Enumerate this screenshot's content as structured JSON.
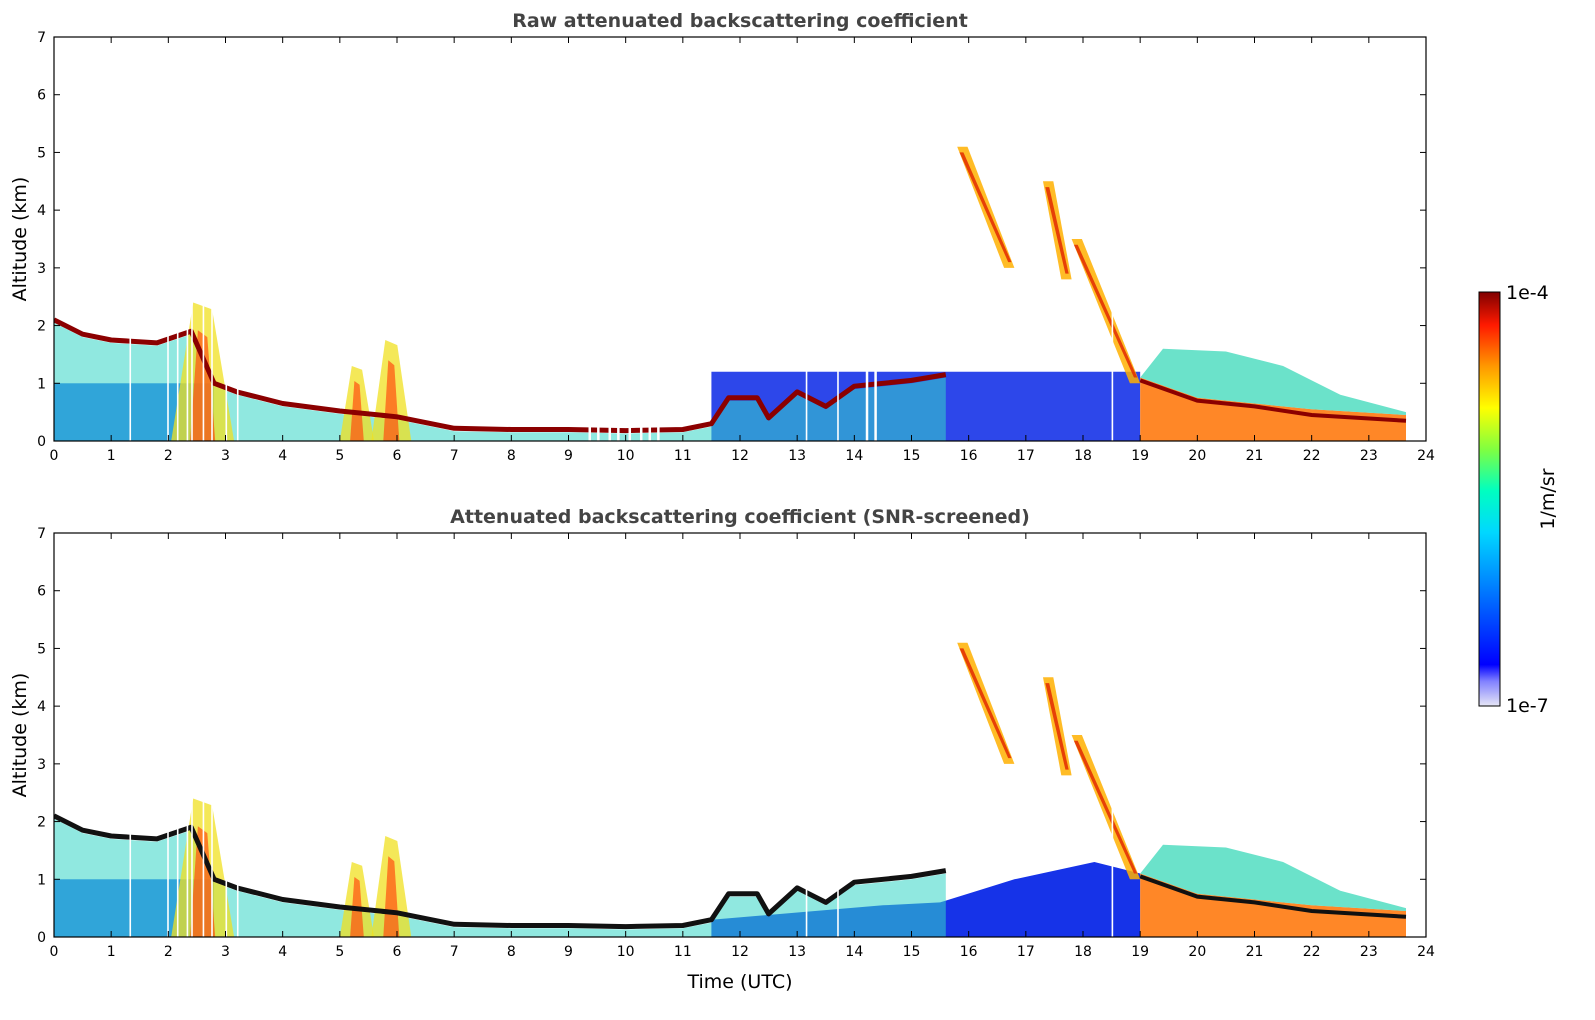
{
  "chart_data": [
    {
      "type": "heatmap",
      "title": "Raw attenuated backscattering coefficient",
      "xlabel": "",
      "ylabel": "Altitude (km)",
      "xlim": [
        0,
        24
      ],
      "ylim": [
        0,
        7
      ],
      "x_ticks": [
        "0",
        "1",
        "2",
        "3",
        "4",
        "5",
        "6",
        "7",
        "8",
        "9",
        "10",
        "11",
        "12",
        "13",
        "14",
        "15",
        "16",
        "17",
        "18",
        "19",
        "20",
        "21",
        "22",
        "23",
        "24"
      ],
      "y_ticks": [
        "0",
        "1",
        "2",
        "3",
        "4",
        "5",
        "6",
        "7"
      ],
      "data_time_range": [
        0,
        23.65
      ],
      "boundary_layer_top_km": [
        [
          0,
          2.1
        ],
        [
          0.5,
          1.85
        ],
        [
          1.0,
          1.75
        ],
        [
          1.8,
          1.7
        ],
        [
          2.4,
          1.9
        ],
        [
          2.8,
          1.0
        ],
        [
          3.2,
          0.85
        ],
        [
          4.0,
          0.65
        ],
        [
          5.0,
          0.52
        ],
        [
          6.0,
          0.42
        ],
        [
          7.0,
          0.22
        ],
        [
          8.0,
          0.2
        ],
        [
          9.0,
          0.2
        ],
        [
          10.0,
          0.18
        ],
        [
          11.0,
          0.2
        ],
        [
          11.5,
          0.3
        ],
        [
          11.8,
          0.75
        ],
        [
          12.3,
          0.75
        ],
        [
          12.5,
          0.4
        ],
        [
          13.0,
          0.85
        ],
        [
          13.5,
          0.6
        ],
        [
          14.0,
          0.95
        ],
        [
          15.0,
          1.05
        ],
        [
          15.6,
          1.15
        ]
      ],
      "high_cloud_streaks": [
        {
          "t_start": 15.8,
          "t_end": 16.8,
          "alt_top_km": 5.1,
          "alt_bottom_km": 3.0
        },
        {
          "t_start": 17.3,
          "t_end": 17.8,
          "alt_top_km": 4.5,
          "alt_bottom_km": 2.8
        },
        {
          "t_start": 17.8,
          "t_end": 19.0,
          "alt_top_km": 3.5,
          "alt_bottom_km": 1.0
        }
      ],
      "colorbar": {
        "label": "1/m/sr",
        "min_label": "1e-7",
        "max_label": "1e-4",
        "scale": "log"
      }
    },
    {
      "type": "heatmap",
      "title": "Attenuated backscattering coefficient (SNR-screened)",
      "xlabel": "Time (UTC)",
      "ylabel": "Altitude (km)",
      "xlim": [
        0,
        24
      ],
      "ylim": [
        0,
        7
      ],
      "x_ticks": [
        "0",
        "1",
        "2",
        "3",
        "4",
        "5",
        "6",
        "7",
        "8",
        "9",
        "10",
        "11",
        "12",
        "13",
        "14",
        "15",
        "16",
        "17",
        "18",
        "19",
        "20",
        "21",
        "22",
        "23",
        "24"
      ],
      "y_ticks": [
        "0",
        "1",
        "2",
        "3",
        "4",
        "5",
        "6",
        "7"
      ],
      "data_time_range": [
        0,
        23.65
      ]
    }
  ],
  "colors": {
    "colormap": [
      "#e8e8f8",
      "#0000ff",
      "#00ccff",
      "#00ffaa",
      "#ffff00",
      "#ff8800",
      "#ff0000",
      "#800000"
    ]
  }
}
